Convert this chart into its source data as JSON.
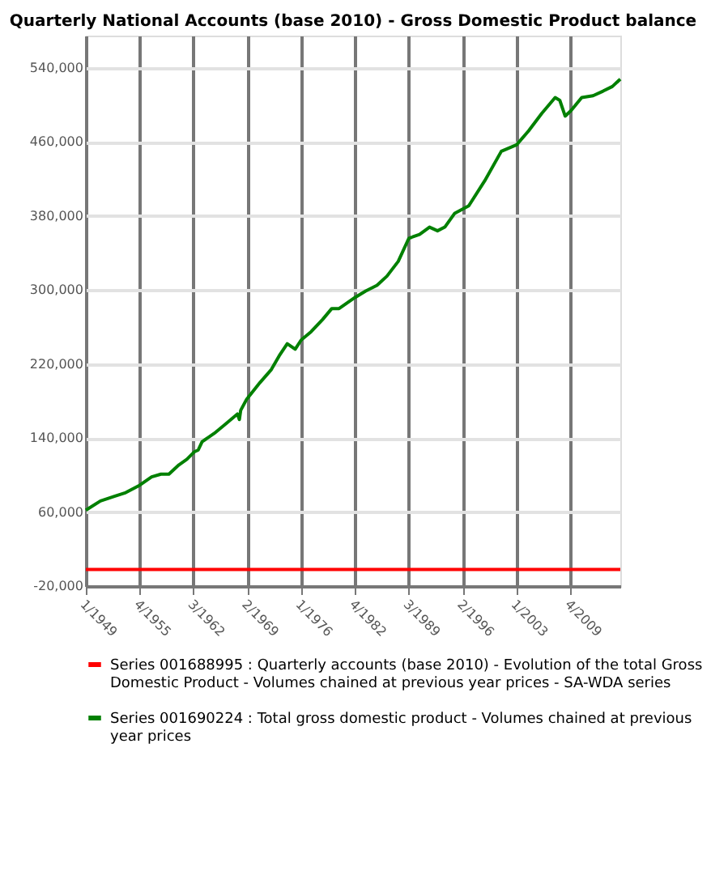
{
  "chart_data": {
    "type": "line",
    "title": "Quarterly National Accounts (base 2010) - Gross Domestic Product balance",
    "xlim": [
      "1949-01",
      "2016-01"
    ],
    "xticks": [
      {
        "value": "1949-01",
        "label": "1/1949"
      },
      {
        "value": "1955-10",
        "label": "4/1955"
      },
      {
        "value": "1962-07",
        "label": "3/1962"
      },
      {
        "value": "1969-04",
        "label": "2/1969"
      },
      {
        "value": "1976-01",
        "label": "1/1976"
      },
      {
        "value": "1982-10",
        "label": "4/1982"
      },
      {
        "value": "1989-07",
        "label": "3/1989"
      },
      {
        "value": "1996-04",
        "label": "2/1996"
      },
      {
        "value": "2003-01",
        "label": "1/2003"
      },
      {
        "value": "2009-10",
        "label": "4/2009"
      }
    ],
    "ylim": [
      -20000,
      575000
    ],
    "yticks": [
      {
        "value": -20000,
        "label": "-20,000"
      },
      {
        "value": 60000,
        "label": "60,000"
      },
      {
        "value": 140000,
        "label": "140,000"
      },
      {
        "value": 220000,
        "label": "220,000"
      },
      {
        "value": 300000,
        "label": "300,000"
      },
      {
        "value": 380000,
        "label": "380,000"
      },
      {
        "value": 460000,
        "label": "460,000"
      },
      {
        "value": 540000,
        "label": "540,000"
      }
    ],
    "grid": true,
    "legend": "bottom",
    "series": [
      {
        "name": "Series 001688995 : Quarterly accounts (base 2010) - Evolution of the total Gross Domestic Product - Volumes chained at previous year prices - SA-WDA series",
        "color": "#ff0000",
        "x": [
          "1949-01",
          "2016-01"
        ],
        "values": [
          -2000,
          -2000
        ]
      },
      {
        "name": "Series 001690224 : Total gross domestic product - Volumes chained at previous year prices",
        "color": "#008000",
        "x": [
          "1949-01",
          "1950-11",
          "1952-08",
          "1954-01",
          "1955-10",
          "1957-04",
          "1958-06",
          "1959-06",
          "1960-09",
          "1961-09",
          "1962-08",
          "1963-02",
          "1963-08",
          "1965-02",
          "1966-07",
          "1968-01",
          "1968-04",
          "1968-06",
          "1969-03",
          "1970-11",
          "1972-04",
          "1973-04",
          "1974-04",
          "1975-04",
          "1976-01",
          "1977-04",
          "1978-09",
          "1979-11",
          "1980-10",
          "1982-10",
          "1984-02",
          "1985-07",
          "1986-10",
          "1988-03",
          "1989-07",
          "1990-11",
          "1992-02",
          "1993-02",
          "1994-01",
          "1995-04",
          "1997-01",
          "1999-01",
          "2001-02",
          "2003-01",
          "2004-07",
          "2006-03",
          "2007-11",
          "2008-06",
          "2009-02",
          "2009-11",
          "2011-03",
          "2012-08",
          "2013-11",
          "2015-01",
          "2016-01"
        ],
        "values": [
          62000,
          72000,
          77000,
          81000,
          89000,
          98000,
          101000,
          101000,
          111000,
          117000,
          125000,
          127000,
          136000,
          145000,
          155000,
          166000,
          160000,
          170000,
          182000,
          200000,
          214000,
          229000,
          242000,
          236000,
          246000,
          255000,
          268000,
          280000,
          280000,
          292000,
          299000,
          305000,
          315000,
          331000,
          356000,
          360000,
          368000,
          364000,
          368000,
          383000,
          391000,
          418000,
          450000,
          457000,
          472000,
          491000,
          508000,
          505000,
          488000,
          494000,
          508000,
          510000,
          515000,
          520000,
          528000
        ]
      }
    ]
  }
}
